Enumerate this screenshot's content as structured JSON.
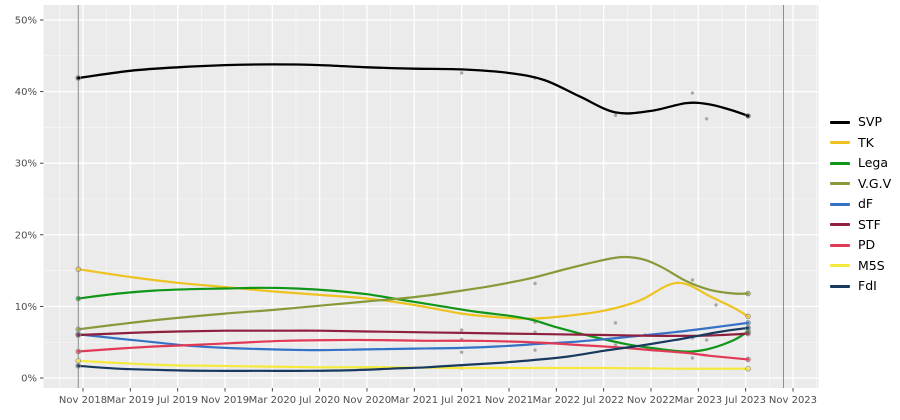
{
  "chart_data": {
    "type": "line",
    "title": "",
    "xlabel": "",
    "ylabel": "",
    "grid": true,
    "legend_position": "right",
    "panel_bg": "#ebebeb",
    "grid_color": "#ffffff",
    "axis_text_color": "#4d4d4d",
    "tick_mark_color": "#333333",
    "election_marker_color": "#8c8c8c",
    "poll_dot_color": "#a0a0a0",
    "y_axis": {
      "tick_labels": [
        "0%",
        "10%",
        "20%",
        "30%",
        "40%",
        "50%"
      ],
      "tick_values": [
        0,
        10,
        20,
        30,
        40,
        50
      ],
      "minor_values": [
        5,
        15,
        25,
        35,
        45
      ],
      "range": [
        0,
        52
      ]
    },
    "x_axis": {
      "tick_labels": [
        "Nov 2018",
        "Mar 2019",
        "Jul 2019",
        "Nov 2019",
        "Mar 2020",
        "Jul 2020",
        "Nov 2020",
        "Mar 2021",
        "Jul 2021",
        "Nov 2021",
        "Mar 2022",
        "Jul 2022",
        "Nov 2022",
        "Mar 2023",
        "Jul 2023",
        "Nov 2023"
      ],
      "tick_months": [
        0,
        4,
        8,
        12,
        16,
        20,
        24,
        28,
        32,
        36,
        40,
        44,
        48,
        52,
        56,
        60
      ]
    },
    "election_marker_months": [
      -0.4,
      59.2
    ],
    "series": [
      {
        "name": "SVP",
        "color": "#000000",
        "width": 2.3,
        "points": [
          [
            -0.4,
            41.9
          ],
          [
            4,
            42.9
          ],
          [
            8,
            43.4
          ],
          [
            12,
            43.7
          ],
          [
            16,
            43.8
          ],
          [
            20,
            43.7
          ],
          [
            24,
            43.4
          ],
          [
            28,
            43.2
          ],
          [
            32,
            43.1
          ],
          [
            36,
            42.6
          ],
          [
            39,
            41.6
          ],
          [
            42,
            39.3
          ],
          [
            45,
            37.1
          ],
          [
            48,
            37.3
          ],
          [
            51,
            38.4
          ],
          [
            53,
            38.2
          ],
          [
            55,
            37.3
          ],
          [
            56.2,
            36.6
          ]
        ]
      },
      {
        "name": "TK",
        "color": "#eec21f",
        "width": 2.2,
        "points": [
          [
            -0.4,
            15.2
          ],
          [
            4,
            14.1
          ],
          [
            8,
            13.3
          ],
          [
            12,
            12.7
          ],
          [
            16,
            12.1
          ],
          [
            20,
            11.6
          ],
          [
            24,
            11.1
          ],
          [
            28,
            10.2
          ],
          [
            32,
            9.0
          ],
          [
            35,
            8.5
          ],
          [
            38,
            8.3
          ],
          [
            41,
            8.7
          ],
          [
            44,
            9.4
          ],
          [
            47,
            10.8
          ],
          [
            49.5,
            13.0
          ],
          [
            51,
            13.1
          ],
          [
            53,
            11.4
          ],
          [
            55,
            9.8
          ],
          [
            56.2,
            8.6
          ]
        ]
      },
      {
        "name": "Lega",
        "color": "#109618",
        "width": 2.2,
        "points": [
          [
            -0.4,
            11.1
          ],
          [
            3,
            11.8
          ],
          [
            6,
            12.2
          ],
          [
            9,
            12.4
          ],
          [
            12,
            12.5
          ],
          [
            15,
            12.6
          ],
          [
            18,
            12.5
          ],
          [
            21,
            12.2
          ],
          [
            24,
            11.7
          ],
          [
            27,
            10.9
          ],
          [
            30,
            10.1
          ],
          [
            33,
            9.3
          ],
          [
            36,
            8.7
          ],
          [
            38,
            8.1
          ],
          [
            40,
            7.1
          ],
          [
            43,
            5.8
          ],
          [
            46,
            4.7
          ],
          [
            48,
            4.2
          ],
          [
            50,
            3.8
          ],
          [
            51.5,
            3.7
          ],
          [
            53,
            4.1
          ],
          [
            55,
            5.3
          ],
          [
            56.2,
            6.5
          ]
        ]
      },
      {
        "name": "V.G.V",
        "color": "#879a39",
        "width": 2.2,
        "points": [
          [
            -0.4,
            6.8
          ],
          [
            4,
            7.7
          ],
          [
            8,
            8.4
          ],
          [
            12,
            9.0
          ],
          [
            16,
            9.5
          ],
          [
            20,
            10.1
          ],
          [
            24,
            10.7
          ],
          [
            28,
            11.3
          ],
          [
            32,
            12.2
          ],
          [
            35,
            13.0
          ],
          [
            38,
            14.0
          ],
          [
            41,
            15.3
          ],
          [
            44,
            16.5
          ],
          [
            45.8,
            16.9
          ],
          [
            47.5,
            16.5
          ],
          [
            49,
            15.4
          ],
          [
            51,
            13.5
          ],
          [
            53,
            12.3
          ],
          [
            55,
            11.8
          ],
          [
            56.2,
            11.8
          ]
        ]
      },
      {
        "name": "dF",
        "color": "#3572c6",
        "width": 2.2,
        "points": [
          [
            -0.4,
            6.1
          ],
          [
            3,
            5.5
          ],
          [
            6,
            5.0
          ],
          [
            9,
            4.5
          ],
          [
            12,
            4.2
          ],
          [
            16,
            4.0
          ],
          [
            20,
            3.9
          ],
          [
            24,
            4.0
          ],
          [
            28,
            4.1
          ],
          [
            32,
            4.2
          ],
          [
            35,
            4.4
          ],
          [
            38,
            4.7
          ],
          [
            41,
            5.0
          ],
          [
            44,
            5.4
          ],
          [
            47,
            5.9
          ],
          [
            50,
            6.4
          ],
          [
            53,
            7.0
          ],
          [
            56.2,
            7.7
          ]
        ]
      },
      {
        "name": "STF",
        "color": "#8e1f3f",
        "width": 2.2,
        "points": [
          [
            -0.4,
            6.0
          ],
          [
            4,
            6.3
          ],
          [
            8,
            6.5
          ],
          [
            12,
            6.6
          ],
          [
            16,
            6.6
          ],
          [
            20,
            6.6
          ],
          [
            24,
            6.5
          ],
          [
            28,
            6.4
          ],
          [
            32,
            6.3
          ],
          [
            36,
            6.2
          ],
          [
            40,
            6.1
          ],
          [
            44,
            6.0
          ],
          [
            48,
            5.9
          ],
          [
            52,
            5.9
          ],
          [
            54,
            6.0
          ],
          [
            56.2,
            6.2
          ]
        ]
      },
      {
        "name": "PD",
        "color": "#e13a56",
        "width": 2.2,
        "points": [
          [
            -0.4,
            3.7
          ],
          [
            3,
            4.1
          ],
          [
            6,
            4.4
          ],
          [
            9,
            4.6
          ],
          [
            13,
            4.9
          ],
          [
            17,
            5.2
          ],
          [
            21,
            5.3
          ],
          [
            25,
            5.3
          ],
          [
            29,
            5.2
          ],
          [
            33,
            5.2
          ],
          [
            36,
            5.1
          ],
          [
            39,
            4.9
          ],
          [
            42,
            4.6
          ],
          [
            45,
            4.3
          ],
          [
            48,
            3.9
          ],
          [
            51,
            3.5
          ],
          [
            53,
            3.1
          ],
          [
            56.2,
            2.6
          ]
        ]
      },
      {
        "name": "M5S",
        "color": "#f5e93c",
        "width": 2.2,
        "points": [
          [
            -0.4,
            2.4
          ],
          [
            3,
            2.1
          ],
          [
            7,
            1.8
          ],
          [
            11,
            1.7
          ],
          [
            15,
            1.6
          ],
          [
            20,
            1.5
          ],
          [
            26,
            1.5
          ],
          [
            32,
            1.4
          ],
          [
            38,
            1.4
          ],
          [
            44,
            1.4
          ],
          [
            50,
            1.3
          ],
          [
            56.2,
            1.3
          ]
        ]
      },
      {
        "name": "FdI",
        "color": "#173a5e",
        "width": 2.2,
        "points": [
          [
            -0.4,
            1.7
          ],
          [
            3,
            1.3
          ],
          [
            7,
            1.1
          ],
          [
            11,
            1.0
          ],
          [
            15,
            1.0
          ],
          [
            19,
            1.0
          ],
          [
            23,
            1.1
          ],
          [
            26,
            1.3
          ],
          [
            29,
            1.5
          ],
          [
            32,
            1.8
          ],
          [
            35,
            2.1
          ],
          [
            38,
            2.5
          ],
          [
            41,
            3.0
          ],
          [
            44,
            3.8
          ],
          [
            47,
            4.5
          ],
          [
            50,
            5.3
          ],
          [
            52,
            5.9
          ],
          [
            54,
            6.5
          ],
          [
            56.2,
            7.0
          ]
        ]
      }
    ],
    "poll_points": [
      [
        32,
        42.6
      ],
      [
        32,
        6.7
      ],
      [
        32,
        5.4
      ],
      [
        32,
        3.6
      ],
      [
        32,
        1.4
      ],
      [
        38.2,
        41.9
      ],
      [
        38.2,
        13.2
      ],
      [
        38.2,
        7.8
      ],
      [
        38.2,
        6.4
      ],
      [
        38.2,
        3.9
      ],
      [
        45,
        36.7
      ],
      [
        45,
        7.7
      ],
      [
        45,
        4.6
      ],
      [
        47.5,
        6.0
      ],
      [
        51.5,
        39.8
      ],
      [
        51.5,
        13.7
      ],
      [
        51.5,
        5.6
      ],
      [
        51.5,
        2.8
      ],
      [
        52.7,
        36.2
      ],
      [
        53.5,
        10.2
      ],
      [
        52.7,
        5.3
      ]
    ]
  }
}
